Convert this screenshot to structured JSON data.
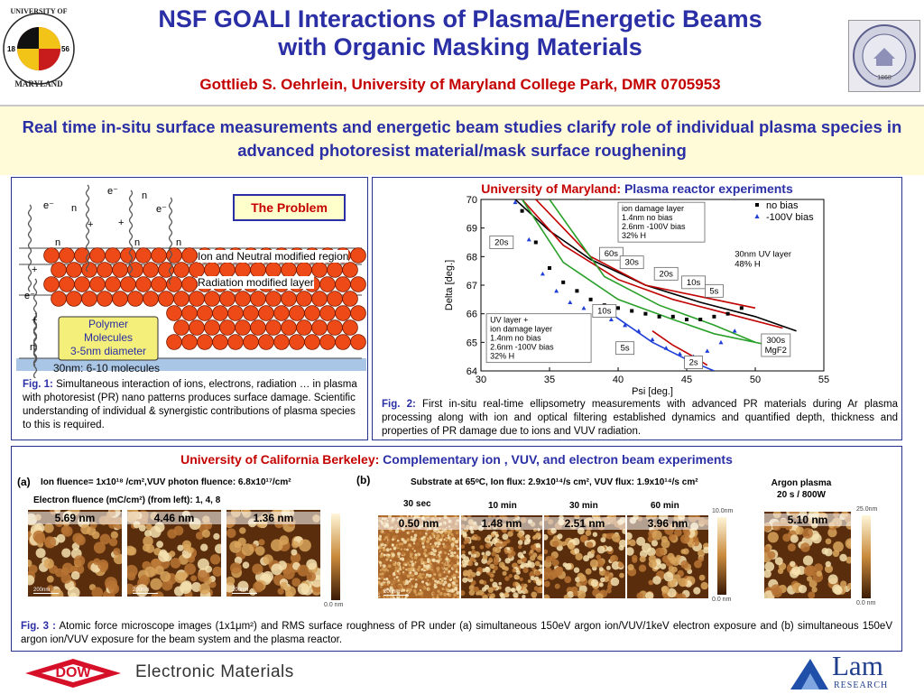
{
  "header": {
    "title_line1": "NSF GOALI Interactions of Plasma/Energetic Beams",
    "title_line2": "with Organic Masking Materials",
    "author": "Gottlieb S. Oehrlein, University of Maryland College Park, DMR 0705953"
  },
  "logos": {
    "umd_top": "UNIVERSITY OF",
    "umd_bottom": "MARYLAND",
    "umd_year_left": "18",
    "umd_year_right": "56",
    "uc_seal_year": "1868",
    "dow": "DOW",
    "dow_division": "Electronic Materials",
    "lam": "Lam",
    "lam_sub": "RESEARCH"
  },
  "summary": "Real time in-situ surface measurements and energetic beam studies clarify role of individual plasma species in advanced photoresist material/mask surface roughening",
  "fig1": {
    "problem_label": "The Problem",
    "ion_label": "Ion and Neutral modified region",
    "radiation_label": "Radiation modified layer",
    "polymer_label": [
      "Polymer",
      "Molecules",
      "3-5nm diameter"
    ],
    "thickness_label": "30nm: 6-10 molecules",
    "species": [
      "e⁻",
      "n",
      "e⁻",
      "n",
      "e⁻",
      "+",
      "+",
      "+",
      "n",
      "n",
      "n",
      "+",
      "e⁻",
      "n"
    ],
    "caption_label": "Fig. 1:",
    "caption_text": " Simultaneous interaction of ions, electrons, radiation … in plasma with photoresist (PR) nano patterns produces surface damage. Scientific understanding of individual & synergistic contributions of plasma species to this is required."
  },
  "fig2": {
    "header_red": "University of Maryland:",
    "header_blue": " Plasma reactor experiments",
    "caption_label": "Fig. 2:",
    "caption_text": " First in-situ real-time ellipsometry measurements with advanced PR materials during Ar plasma processing along with ion and optical filtering established dynamics and quantified depth, thickness and properties of PR damage due to ions and VUV radiation."
  },
  "chart_data": {
    "type": "line",
    "xlabel": "Psi [deg.]",
    "ylabel": "Delta [deg.]",
    "xlim": [
      30,
      55
    ],
    "ylim": [
      64,
      70
    ],
    "xticks": [
      30,
      35,
      40,
      45,
      50,
      55
    ],
    "yticks": [
      64,
      65,
      66,
      67,
      68,
      69,
      70
    ],
    "legend": {
      "placement": "top-right",
      "entries": [
        "no bias",
        "-100V bias"
      ]
    },
    "legend_colors": [
      "#000000",
      "#1f3fd6"
    ],
    "series": [
      {
        "name": "no bias",
        "style": "markers",
        "color": "#000000",
        "x": [
          33.0,
          34.0,
          35.0,
          36.0,
          37.0,
          38.0,
          39.0,
          40.0,
          41.0,
          42.0,
          43.0,
          44.0,
          45.0,
          46.0,
          47.0,
          48.0,
          49.0
        ],
        "y": [
          69.6,
          68.5,
          67.6,
          67.1,
          66.8,
          66.5,
          66.3,
          66.2,
          66.1,
          66.0,
          65.9,
          65.9,
          65.8,
          65.8,
          65.9,
          66.0,
          66.2
        ]
      },
      {
        "name": "-100V bias",
        "style": "markers",
        "color": "#1f3fd6",
        "x": [
          32.5,
          33.5,
          34.5,
          35.5,
          36.5,
          37.5,
          38.5,
          39.5,
          40.5,
          41.5,
          42.5,
          43.5,
          44.5,
          45.5,
          46.5,
          47.5,
          48.5
        ],
        "y": [
          69.9,
          68.6,
          67.4,
          66.8,
          66.4,
          66.2,
          66.0,
          65.8,
          65.6,
          65.4,
          65.1,
          64.8,
          64.6,
          64.5,
          64.7,
          65.0,
          65.4
        ]
      }
    ],
    "model_curves": [
      {
        "color": "#000000",
        "x": [
          32.5,
          35,
          38,
          42,
          46,
          50,
          53
        ],
        "y": [
          70.0,
          68.9,
          67.9,
          67.0,
          66.4,
          65.9,
          65.4
        ]
      },
      {
        "color": "#c00000",
        "x": [
          33,
          36,
          40,
          44,
          48,
          52
        ],
        "y": [
          70.0,
          68.4,
          67.2,
          66.5,
          66.0,
          65.5
        ]
      },
      {
        "color": "#c00000",
        "x": [
          34,
          38,
          42,
          46,
          50
        ],
        "y": [
          70.0,
          68.0,
          67.0,
          66.6,
          66.2
        ]
      },
      {
        "color": "#2aa02a",
        "x": [
          33,
          36,
          40,
          44,
          47,
          51
        ],
        "y": [
          70.0,
          67.8,
          66.5,
          65.8,
          65.3,
          64.9
        ]
      },
      {
        "color": "#2aa02a",
        "x": [
          35,
          39,
          43,
          47,
          50
        ],
        "y": [
          70.0,
          67.3,
          66.3,
          65.6,
          65.0
        ]
      },
      {
        "color": "#1f3fd6",
        "x": [
          39.5,
          42.5,
          45,
          47
        ],
        "y": [
          66.0,
          65.0,
          64.4,
          64.0
        ]
      },
      {
        "color": "#c00000",
        "x": [
          42.5,
          44,
          45.5,
          46.5
        ],
        "y": [
          65.4,
          64.9,
          64.5,
          64.2
        ]
      }
    ],
    "annotations": [
      {
        "text": "20s",
        "x": 31.5,
        "y": 68.5
      },
      {
        "text": "60s",
        "x": 39.5,
        "y": 68.1
      },
      {
        "text": "30s",
        "x": 41.0,
        "y": 67.8
      },
      {
        "text": "20s",
        "x": 43.5,
        "y": 67.4
      },
      {
        "text": "10s",
        "x": 45.5,
        "y": 67.1
      },
      {
        "text": "5s",
        "x": 47.0,
        "y": 66.8
      },
      {
        "text": "10s",
        "x": 39.0,
        "y": 66.1
      },
      {
        "text": "5s",
        "x": 40.5,
        "y": 64.8
      },
      {
        "text": "2s",
        "x": 45.5,
        "y": 64.3
      },
      {
        "text": "300s MgF2",
        "x": 51.5,
        "y": 64.9
      }
    ],
    "box_top": [
      "ion damage layer",
      "1.4nm no bias",
      "2.6nm -100V bias",
      "32% H"
    ],
    "box_right": [
      "30nm UV layer",
      "48% H"
    ],
    "box_bottom": [
      "UV layer +",
      "ion damage layer",
      "1.4nm no bias",
      "2.6nm -100V bias",
      "32% H"
    ]
  },
  "fig3": {
    "header_red": "University of California Berkeley:",
    "header_blue": " Complementary ion , VUV, and electron beam experiments",
    "part_a_label": "(a)",
    "part_a_conditions": "Ion fluence= 1x10¹⁸ /cm²,VUV  photon fluence: 6.8x10¹⁷/cm²",
    "electron_fluence": "Electron fluence (mC/cm²) (from left): 1, 4, 8",
    "part_b_label": "(b)",
    "part_b_conditions": "Substrate at 65ᵒC, Ion flux: 2.9x10¹⁴/s cm², VUV flux: 1.9x10¹⁴/s cm²",
    "argon_label_1": "Argon plasma",
    "argon_label_2": "20 s / 800W",
    "images_a": [
      "5.69 nm",
      "4.46 nm",
      "1.36 nm"
    ],
    "times_b": [
      "30 sec",
      "10 min",
      "30 min",
      "60 min"
    ],
    "images_b": [
      "0.50 nm",
      "1.48 nm",
      "2.51 nm",
      "3.96 nm"
    ],
    "image_argon": "5.10 nm",
    "scale_label": "200nm",
    "colorbar_a_bottom": "0.0 nm",
    "colorbar_b_top": "10.0nm",
    "colorbar_b_bottom": "0.0 nm",
    "colorbar_c_top": "25.0nm",
    "colorbar_c_bottom": "0.0 nm",
    "caption_label": "Fig. 3 :",
    "caption_text": " Atomic force microscope images (1x1μm²) and RMS surface roughness of PR under (a) simultaneous 150eV argon ion/VUV/1keV electron exposure and (b) simultaneous 150eV argon ion/VUV exposure for the beam system and the plasma reactor."
  }
}
